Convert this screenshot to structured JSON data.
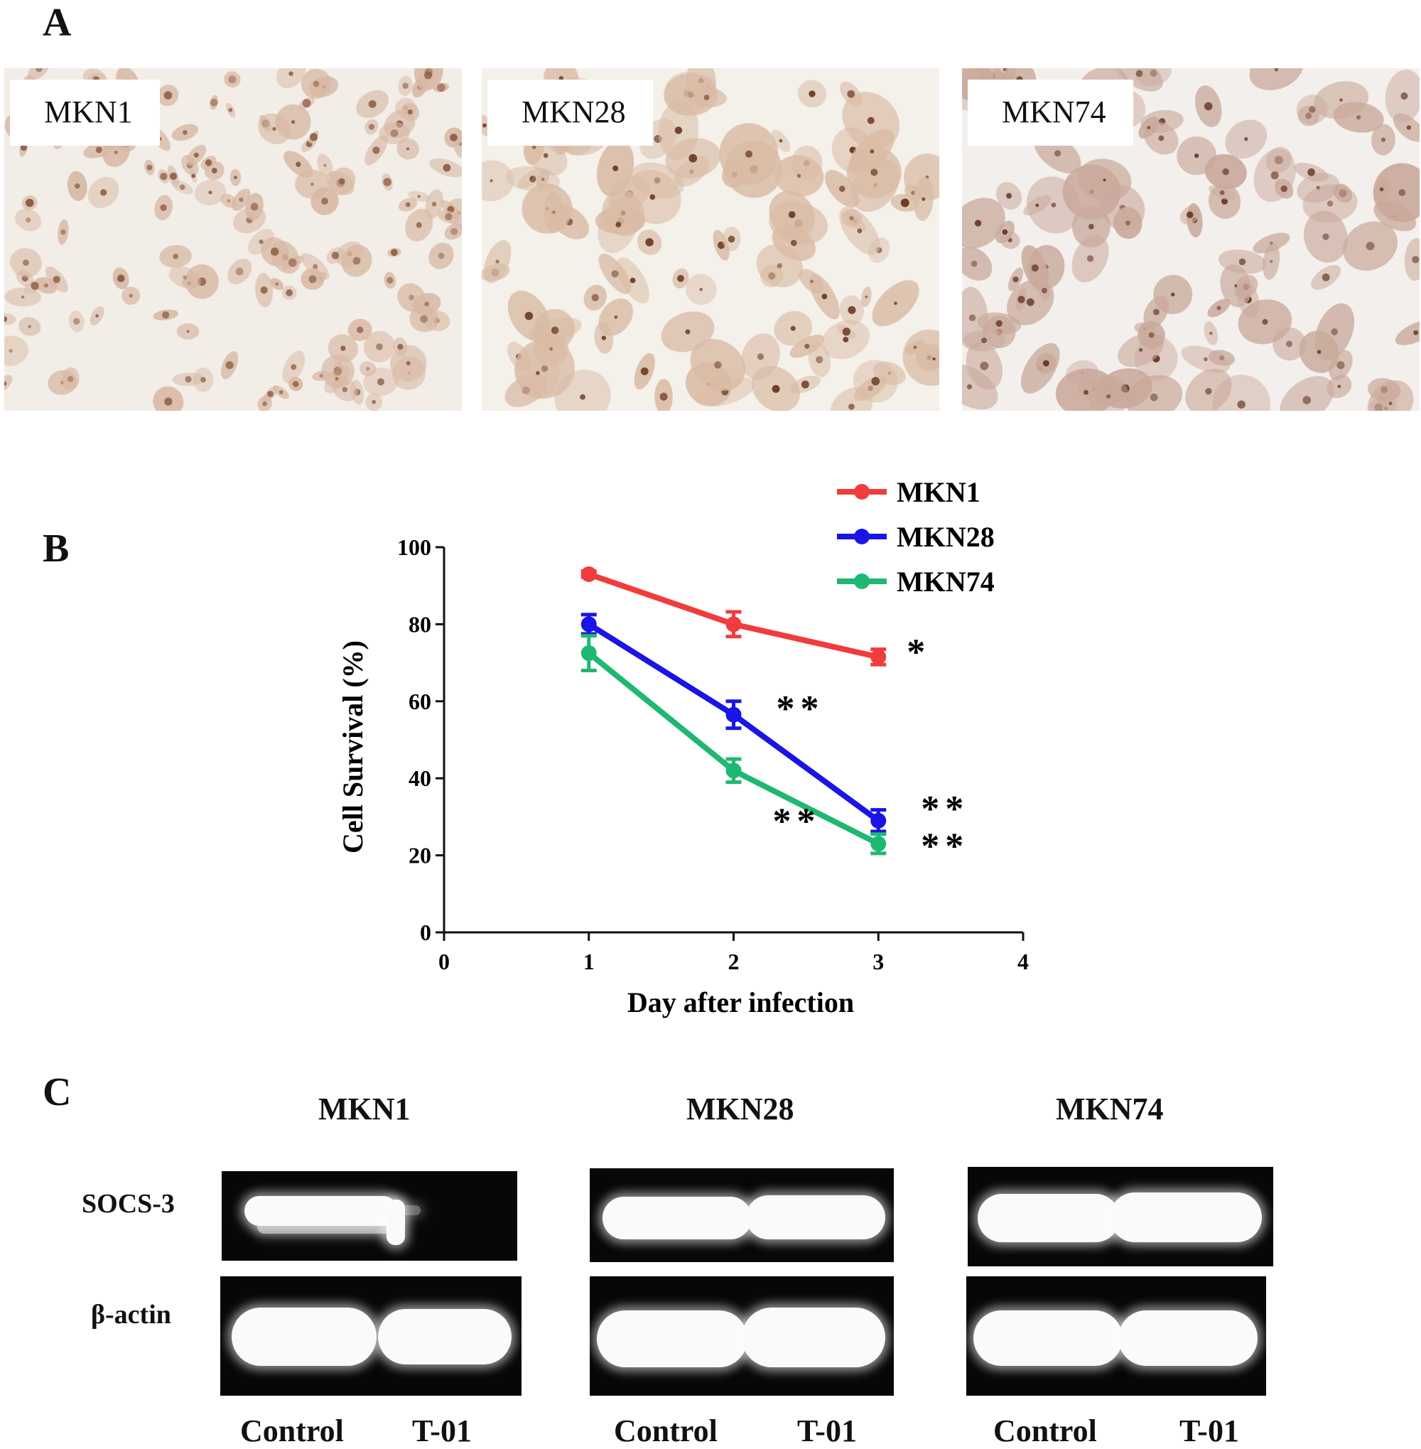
{
  "panels": {
    "a": "A",
    "b": "B",
    "c": "C"
  },
  "micrographs": [
    {
      "label": "MKN1",
      "bg": "#f2ede6",
      "cell": "#d7b8a4",
      "nucleus": "#8f5e45"
    },
    {
      "label": "MKN28",
      "bg": "#f4f0ea",
      "cell": "#d9bba5",
      "nucleus": "#6e3c27"
    },
    {
      "label": "MKN74",
      "bg": "#f3efec",
      "cell": "#c9a99b",
      "nucleus": "#6a3a2a"
    }
  ],
  "chart_data": {
    "type": "line",
    "xlabel": "Day after infection",
    "ylabel": "Cell Survival (%)",
    "xlim": [
      0,
      4
    ],
    "ylim": [
      0,
      100
    ],
    "xticks": [
      0,
      1,
      2,
      3,
      4
    ],
    "yticks": [
      0,
      20,
      40,
      60,
      80,
      100
    ],
    "x": [
      1,
      2,
      3
    ],
    "legend_position": "top-right",
    "series": [
      {
        "name": "MKN1",
        "color": "#f03c3c",
        "values": [
          93,
          80,
          71.5
        ],
        "errors": [
          0.8,
          3.2,
          2
        ],
        "markers": [
          "",
          "",
          "*"
        ]
      },
      {
        "name": "MKN28",
        "color": "#1a14e6",
        "values": [
          80,
          56.5,
          29
        ],
        "errors": [
          2.5,
          3.5,
          2.8
        ],
        "markers": [
          "",
          "**",
          "**"
        ]
      },
      {
        "name": "MKN74",
        "color": "#1fb872",
        "values": [
          72.5,
          42,
          23
        ],
        "errors": [
          4.5,
          3,
          2.5
        ],
        "markers": [
          "",
          "**",
          "**"
        ]
      }
    ]
  },
  "western": {
    "rows": [
      "SOCS-3",
      "β-actin"
    ],
    "lanes": [
      "Control",
      "T-01"
    ],
    "groups": [
      "MKN1",
      "MKN28",
      "MKN74"
    ]
  }
}
